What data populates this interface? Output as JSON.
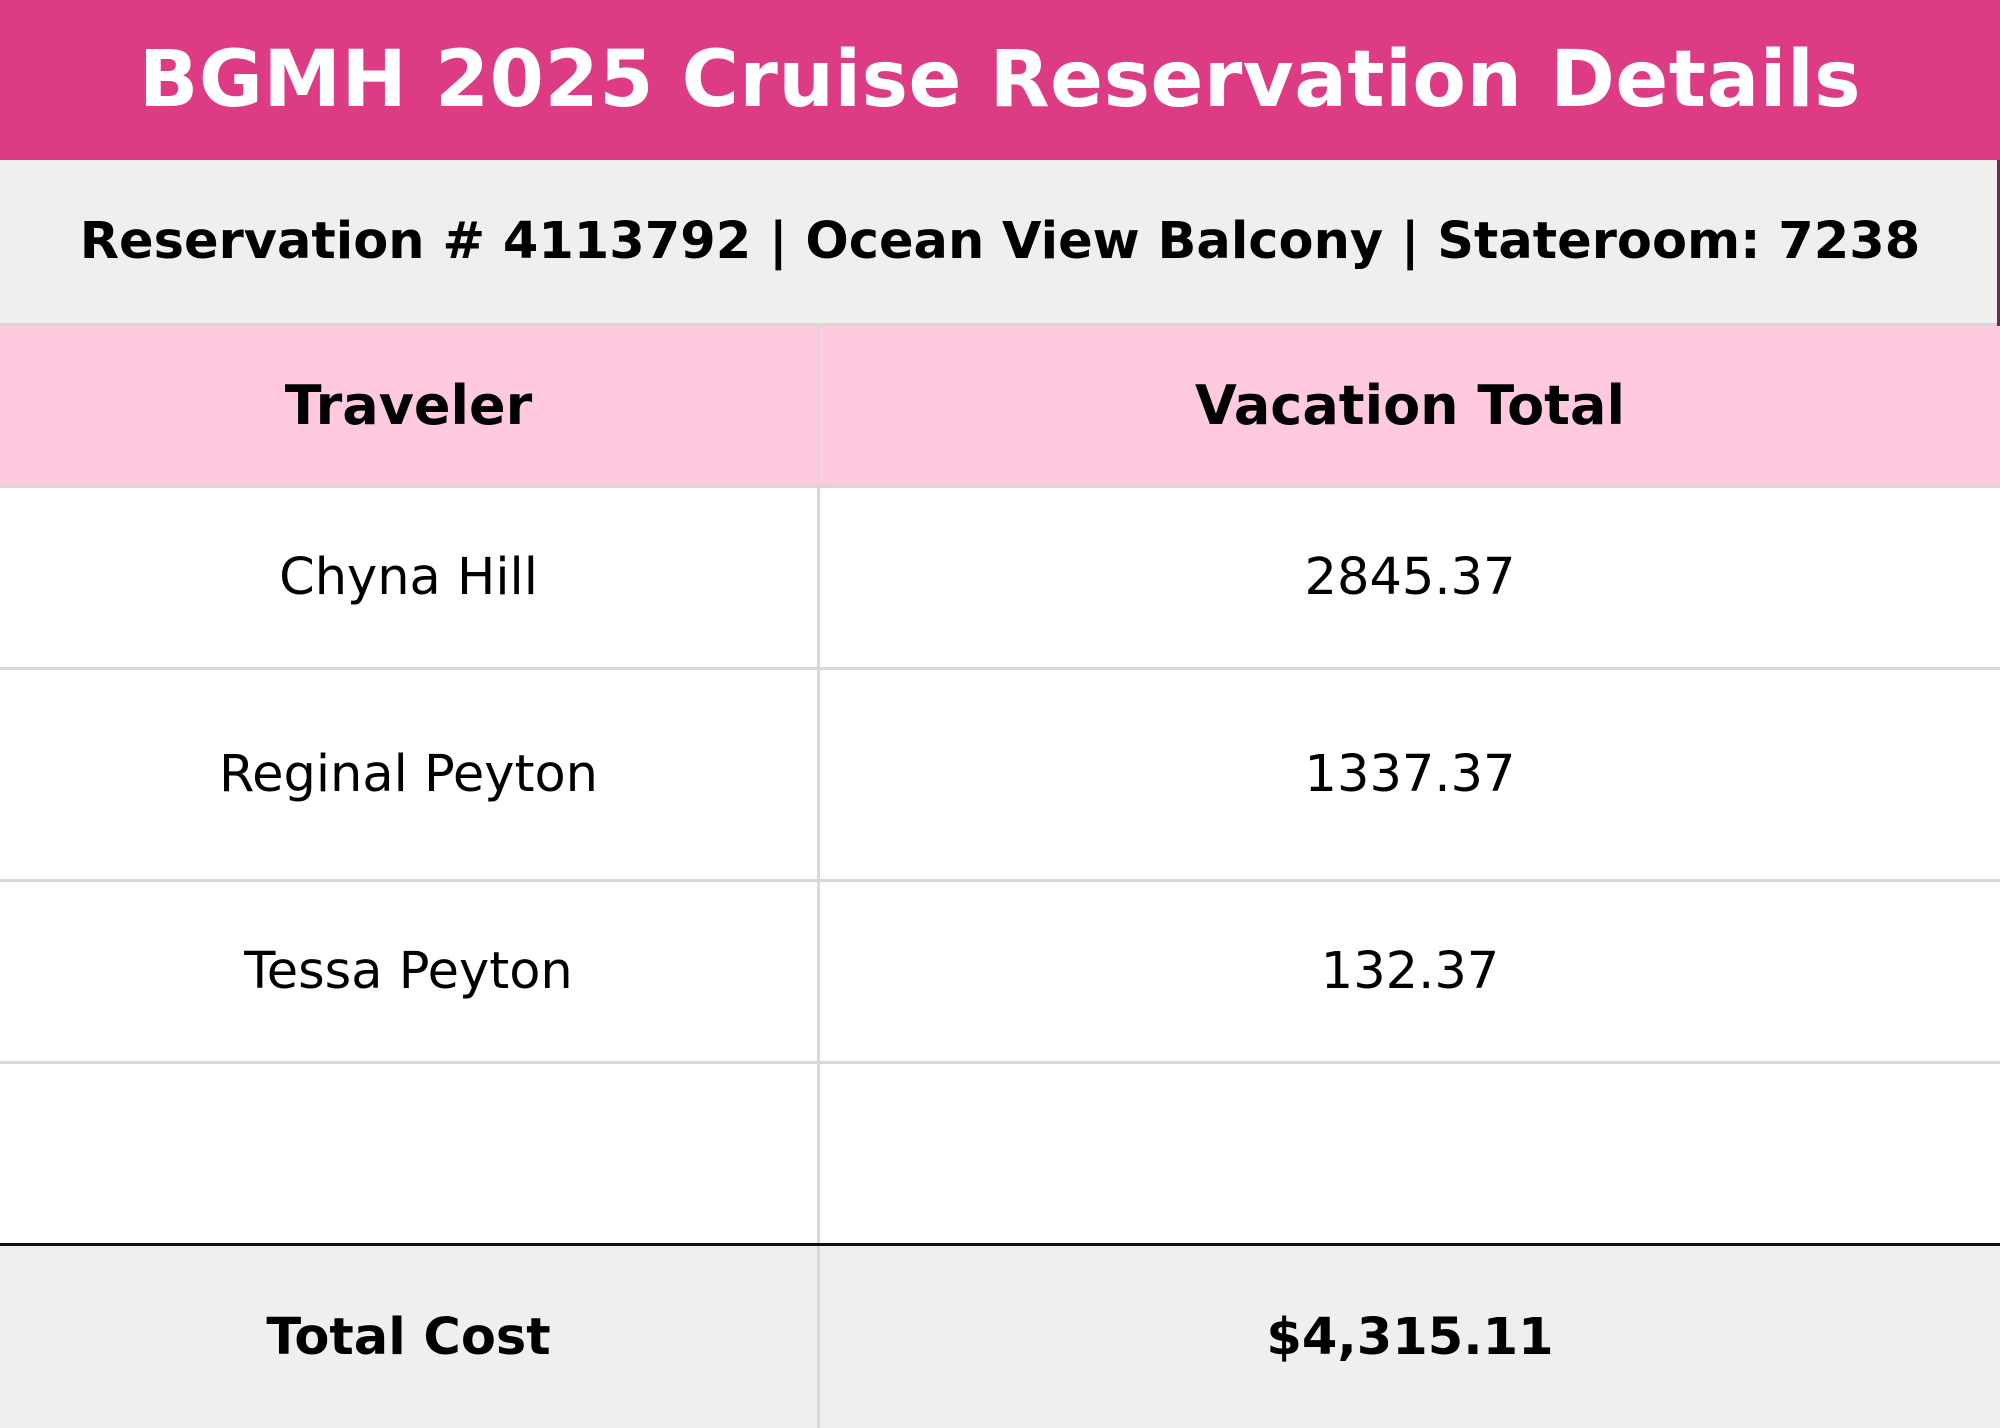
{
  "title": "BGMH 2025 Cruise Reservation Details",
  "reservation_line": "Reservation # 4113792 | Ocean View Balcony | Stateroom: 7238",
  "table": {
    "headers": [
      "Traveler",
      "Vacation Total"
    ],
    "rows": [
      [
        "Chyna Hill",
        "2845.37"
      ],
      [
        "Reginal Peyton",
        "1337.37"
      ],
      [
        "Tessa Peyton",
        "132.37"
      ],
      [
        "",
        ""
      ]
    ],
    "total": {
      "label": "Total Cost",
      "value": "$4,315.11"
    }
  },
  "colors": {
    "banner": "#dd3c84",
    "header_row": "#ffc9e0",
    "subheader": "#f0efed",
    "total_row": "#f0efed"
  }
}
